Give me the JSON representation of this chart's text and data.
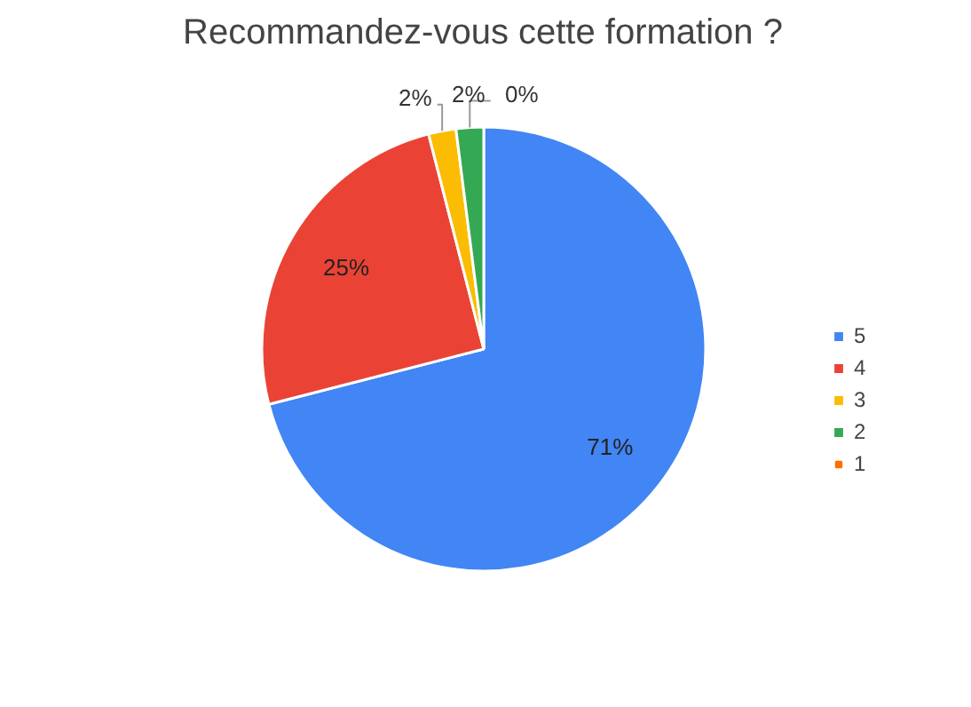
{
  "chart_data": {
    "type": "pie",
    "title": "Recommandez-vous cette formation ?",
    "categories": [
      "5",
      "4",
      "3",
      "2",
      "1"
    ],
    "values": [
      71,
      25,
      2,
      2,
      0
    ],
    "value_labels": [
      "71%",
      "25%",
      "2%",
      "2%",
      "0%"
    ],
    "colors": [
      "#4285f4",
      "#ea4335",
      "#fbbc04",
      "#34a853",
      "#ff6d01"
    ],
    "legend": "right"
  }
}
